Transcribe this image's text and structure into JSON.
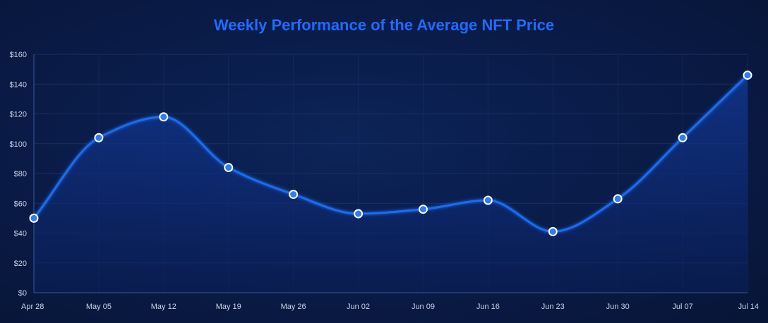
{
  "colors": {
    "title": "#1f6bff",
    "line": "#1e6cf0",
    "point_fill": "#2f7cf6",
    "point_stroke": "#ffffff",
    "grid": "#1a2f66",
    "axis": "#3a5aa0",
    "area_top": "#123a9a",
    "area_bottom": "#0a1f5a"
  },
  "chart_data": {
    "type": "line",
    "title": "Weekly Performance of the Average NFT Price",
    "xlabel": "",
    "ylabel": "",
    "categories": [
      "Apr 28",
      "May 05",
      "May 12",
      "May 19",
      "May 26",
      "Jun 02",
      "Jun 09",
      "Jun 16",
      "Jun 23",
      "Jun 30",
      "Jul 07",
      "Jul 14"
    ],
    "series": [
      {
        "name": "Average NFT Price",
        "values": [
          50,
          104,
          118,
          84,
          66,
          53,
          56,
          62,
          41,
          63,
          104,
          146
        ]
      }
    ],
    "ylim": [
      0,
      160
    ],
    "yticks": [
      0,
      20,
      40,
      60,
      80,
      100,
      120,
      140,
      160
    ],
    "ytick_labels": [
      "$0",
      "$20",
      "$40",
      "$60",
      "$80",
      "$100",
      "$120",
      "$140",
      "$160"
    ],
    "grid": true,
    "smooth": true,
    "area_fill": true
  }
}
